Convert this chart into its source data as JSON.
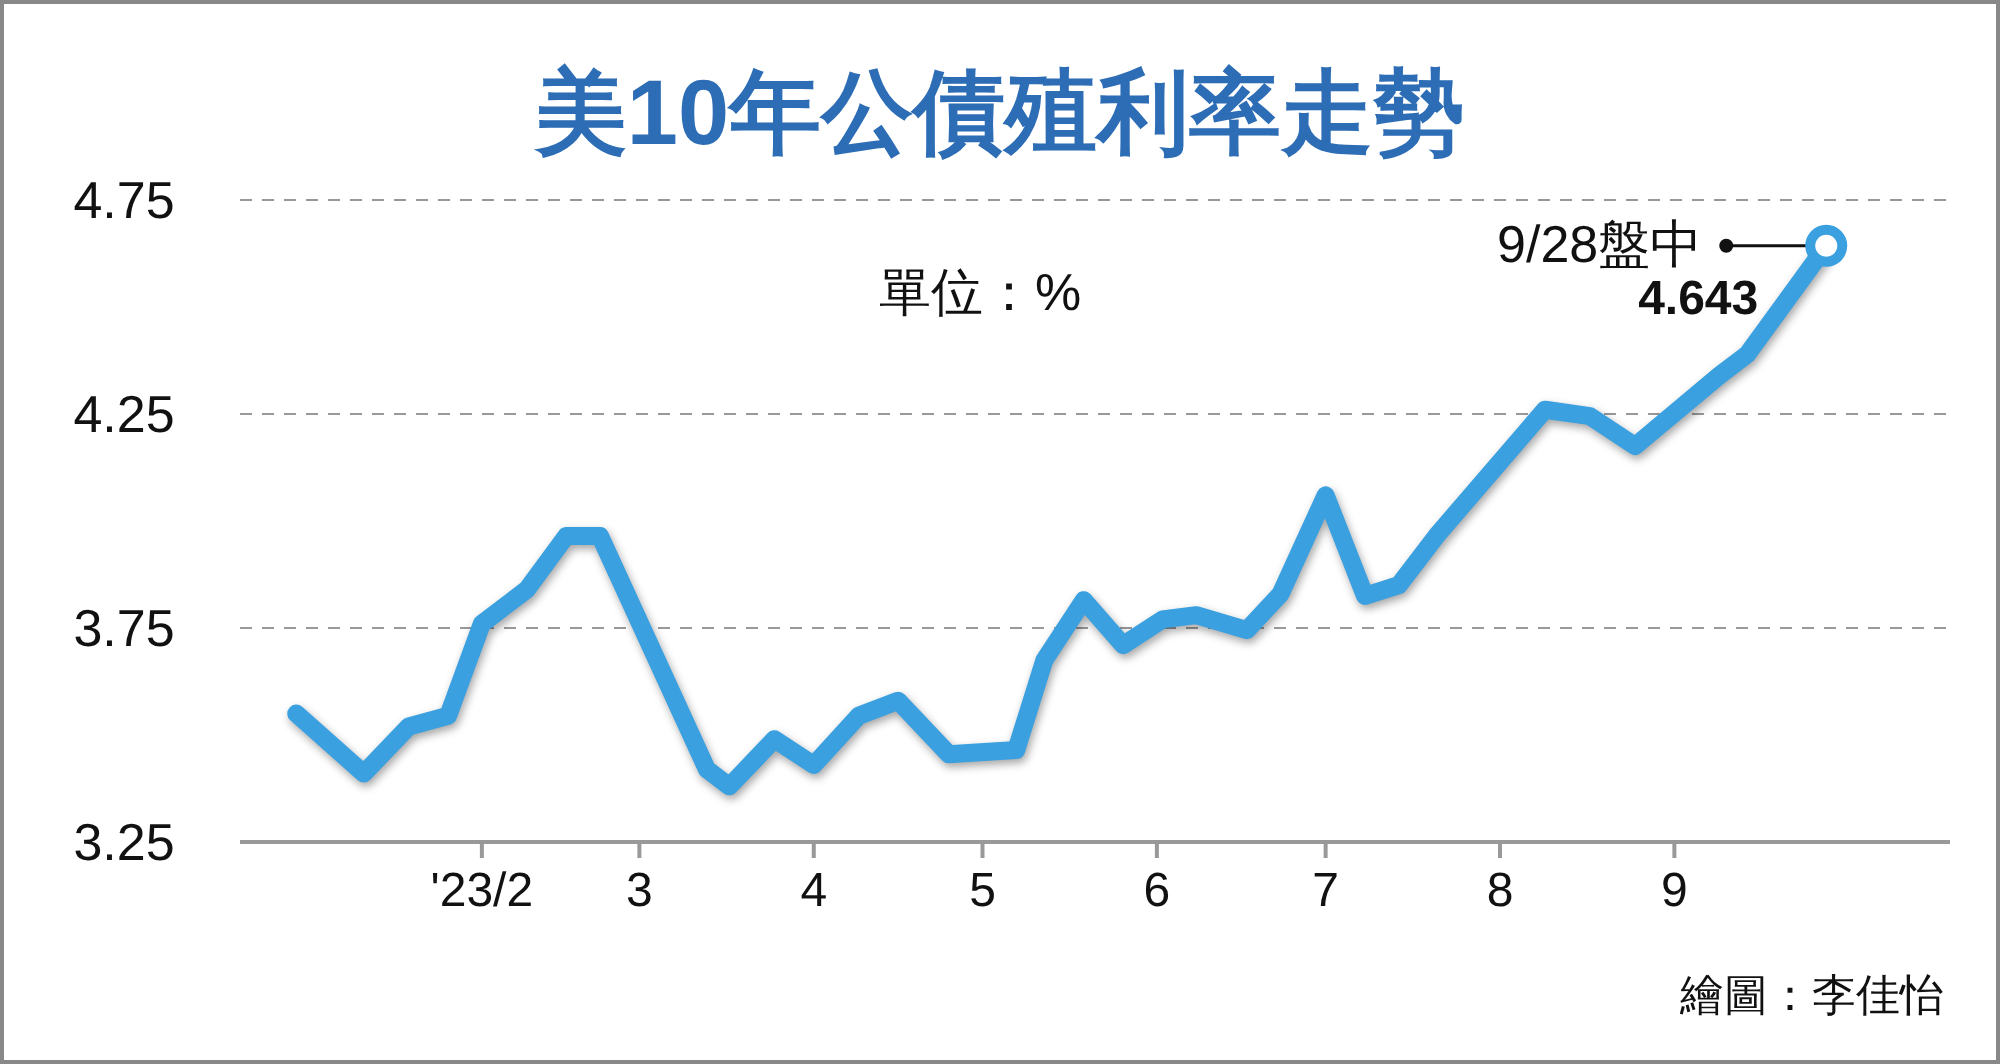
{
  "chart_data": {
    "type": "line",
    "title": "美10年公債殖利率走勢",
    "x": [
      "2022-12-30",
      "2023-01-11",
      "2023-01-19",
      "2023-01-26",
      "2023-02-01",
      "2023-02-09",
      "2023-02-16",
      "2023-02-22",
      "2023-03-13",
      "2023-03-17",
      "2023-03-25",
      "2023-04-01",
      "2023-04-09",
      "2023-04-16",
      "2023-04-25",
      "2023-05-07",
      "2023-05-12",
      "2023-05-19",
      "2023-05-26",
      "2023-06-02",
      "2023-06-08",
      "2023-06-17",
      "2023-06-23",
      "2023-07-01",
      "2023-07-08",
      "2023-07-14",
      "2023-07-21",
      "2023-08-09",
      "2023-08-17",
      "2023-08-25",
      "2023-09-09",
      "2023-09-14",
      "2023-09-28"
    ],
    "series": [
      {
        "color": "#3aa0e0",
        "values": [
          3.55,
          3.41,
          3.52,
          3.545,
          3.76,
          3.84,
          3.965,
          3.965,
          3.42,
          3.38,
          3.49,
          3.43,
          3.545,
          3.58,
          3.455,
          3.465,
          3.675,
          3.815,
          3.71,
          3.77,
          3.78,
          3.745,
          3.83,
          4.06,
          3.825,
          3.85,
          3.97,
          4.26,
          4.245,
          4.175,
          4.34,
          4.39,
          4.643
        ],
        "value_labels": [
          null,
          null,
          null,
          null,
          null,
          null,
          null,
          null,
          null,
          null,
          null,
          null,
          null,
          null,
          null,
          null,
          null,
          null,
          null,
          null,
          null,
          null,
          null,
          null,
          null,
          null,
          null,
          null,
          null,
          null,
          null,
          null,
          "4.643"
        ]
      }
    ],
    "xlim": [
      "2022-12-20",
      "2023-10-20"
    ],
    "xticks": [
      {
        "value": "2023-02-01",
        "label": "'23/2"
      },
      {
        "value": "2023-03-01",
        "label": "3"
      },
      {
        "value": "2023-04-01",
        "label": "4"
      },
      {
        "value": "2023-05-01",
        "label": "5"
      },
      {
        "value": "2023-06-01",
        "label": "6"
      },
      {
        "value": "2023-07-01",
        "label": "7"
      },
      {
        "value": "2023-08-01",
        "label": "8"
      },
      {
        "value": "2023-09-01",
        "label": "9"
      }
    ],
    "ylim": [
      3.25,
      4.75
    ],
    "yticks": [
      3.25,
      3.75,
      4.25,
      4.75
    ],
    "grid": "y",
    "marker": "none",
    "line_style": "solid",
    "annotations": [
      "單位：%",
      {
        "text": "9/28盤中",
        "x": "2023-09-28",
        "y": 4.643
      },
      "繪圖：李佳怡"
    ]
  }
}
